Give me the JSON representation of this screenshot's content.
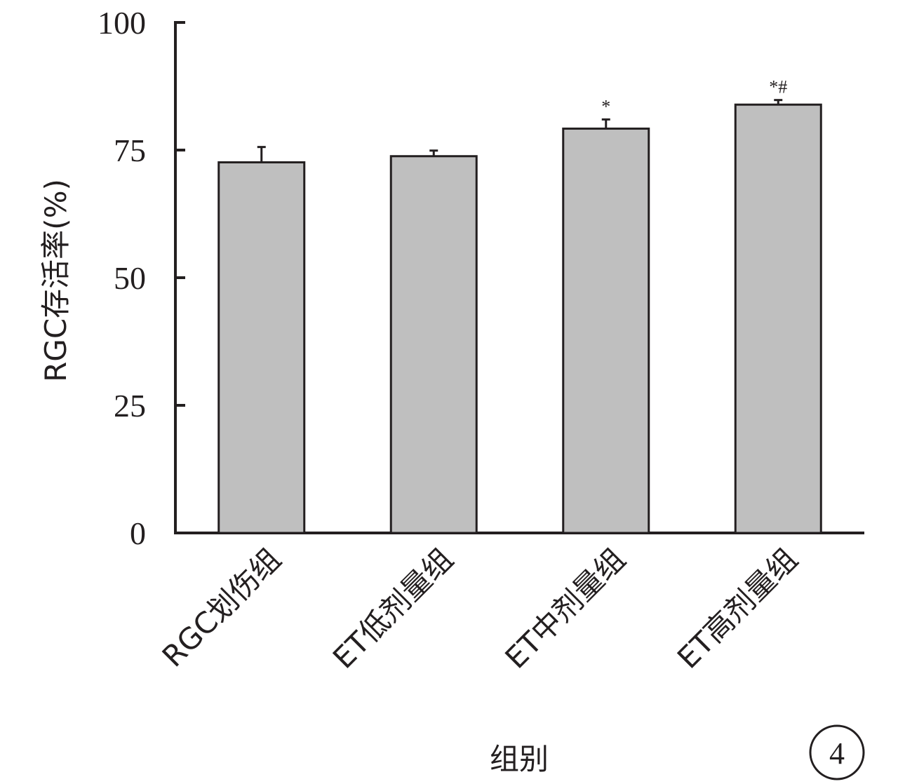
{
  "chart_data": {
    "type": "bar",
    "title": "",
    "xlabel": "组别",
    "ylabel": "RGC存活率(%)",
    "ylim": [
      0,
      100
    ],
    "yticks": [
      "0",
      "25",
      "50",
      "75",
      "100"
    ],
    "yticks_values": [
      0,
      25,
      50,
      75,
      100
    ],
    "categories": [
      "RGC划伤组",
      "ET低剂量组",
      "ET中剂量组",
      "ET高剂量组"
    ],
    "series": [
      {
        "values": [
          72.6,
          73.8,
          79.2,
          83.9
        ],
        "error": [
          3.0,
          1.1,
          1.8,
          0.9
        ],
        "significance": [
          "",
          "",
          "*",
          "*#"
        ],
        "color": "#bfbfbf"
      }
    ],
    "grid": false,
    "legend": "none",
    "panel_badge": "4"
  }
}
